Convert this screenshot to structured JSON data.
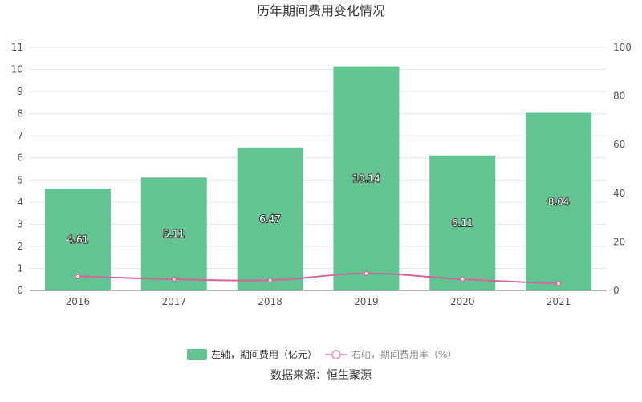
{
  "chart_data": {
    "type": "bar",
    "title": "历年期间费用变化情况",
    "categories": [
      "2016",
      "2017",
      "2018",
      "2019",
      "2020",
      "2021"
    ],
    "series": [
      {
        "name": "左轴，期间费用（亿元）",
        "type": "bar",
        "axis": "left",
        "color": "#63c492",
        "values": [
          4.61,
          5.11,
          6.47,
          10.14,
          6.11,
          8.04
        ],
        "labels": [
          "4.61",
          "5.11",
          "6.47",
          "10.14",
          "6.11",
          "8.04"
        ]
      },
      {
        "name": "右轴，期间费用率（%）",
        "type": "line",
        "axis": "right",
        "color": "#d4649f",
        "values": [
          5.8,
          4.6,
          4.2,
          7.0,
          4.6,
          2.8
        ]
      }
    ],
    "y_left": {
      "range": [
        0,
        11
      ],
      "ticks": [
        "0",
        "1",
        "2",
        "3",
        "4",
        "5",
        "6",
        "7",
        "8",
        "9",
        "10",
        "11"
      ]
    },
    "y_right": {
      "range": [
        0,
        100
      ],
      "ticks": [
        "0",
        "20",
        "40",
        "60",
        "80",
        "100"
      ]
    },
    "grid": true,
    "legend_placement": "bottom",
    "source": "数据来源：恒生聚源"
  }
}
